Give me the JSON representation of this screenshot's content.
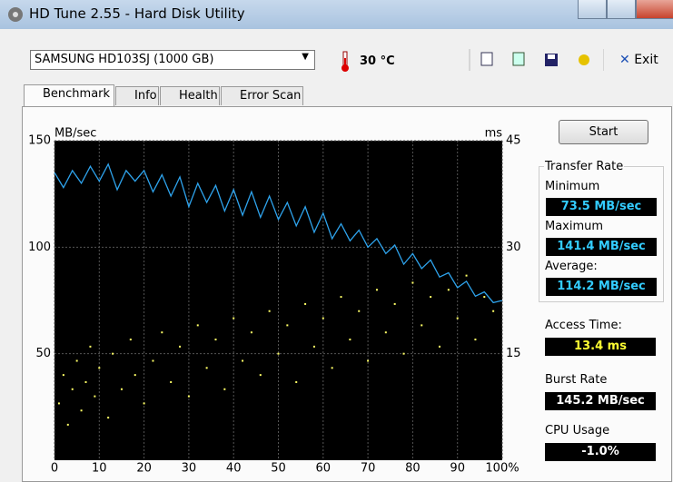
{
  "window": {
    "title": "HD Tune 2.55 - Hard Disk Utility"
  },
  "toolbar": {
    "drive": "SAMSUNG HD103SJ (1000 GB)",
    "temperature": "30 °C",
    "exit": "Exit"
  },
  "tabs": [
    "Benchmark",
    "Info",
    "Health",
    "Error Scan"
  ],
  "results": {
    "start": "Start",
    "transfer_rate": "Transfer Rate",
    "minimum_label": "Minimum",
    "minimum": "73.5 MB/sec",
    "maximum_label": "Maximum",
    "maximum": "141.4 MB/sec",
    "average_label": "Average:",
    "average": "114.2 MB/sec",
    "access_time_label": "Access Time:",
    "access_time": "13.4 ms",
    "burst_rate_label": "Burst Rate",
    "burst_rate": "145.2 MB/sec",
    "cpu_usage_label": "CPU Usage",
    "cpu_usage": "-1.0%"
  },
  "chart_data": {
    "type": "line",
    "y_label": "MB/sec",
    "y2_label": "ms",
    "xlim": [
      0,
      100
    ],
    "xticks": [
      0,
      10,
      20,
      30,
      40,
      50,
      60,
      70,
      80,
      90,
      {
        "value": 100,
        "label": "100%"
      }
    ],
    "ylim": [
      0,
      150
    ],
    "yticks": [
      50,
      100,
      150
    ],
    "y2lim": [
      0,
      45
    ],
    "y2ticks": [
      15,
      30,
      45
    ],
    "grid": true,
    "series": [
      {
        "type": "line",
        "color": "#2ea3ec",
        "x": [
          0,
          2,
          4,
          6,
          8,
          10,
          12,
          14,
          16,
          18,
          20,
          22,
          24,
          26,
          28,
          30,
          32,
          34,
          36,
          38,
          40,
          42,
          44,
          46,
          48,
          50,
          52,
          54,
          56,
          58,
          60,
          62,
          64,
          66,
          68,
          70,
          72,
          74,
          76,
          78,
          80,
          82,
          84,
          86,
          88,
          90,
          92,
          94,
          96,
          98,
          100
        ],
        "values": [
          135,
          128,
          136,
          130,
          138,
          131,
          139,
          127,
          136,
          131,
          136,
          126,
          134,
          124,
          133,
          119,
          130,
          121,
          129,
          117,
          127,
          115,
          126,
          114,
          124,
          113,
          121,
          110,
          119,
          107,
          116,
          104,
          111,
          103,
          108,
          100,
          104,
          97,
          101,
          92,
          97,
          90,
          94,
          86,
          88,
          81,
          84,
          77,
          79,
          74,
          75
        ]
      },
      {
        "type": "scatter",
        "color": "#ffff66",
        "axis": "y2",
        "x": [
          1,
          2,
          3,
          4,
          5,
          6,
          7,
          8,
          9,
          10,
          12,
          13,
          15,
          17,
          18,
          20,
          22,
          24,
          26,
          28,
          30,
          32,
          34,
          36,
          38,
          40,
          42,
          44,
          46,
          48,
          50,
          52,
          54,
          56,
          58,
          60,
          62,
          64,
          66,
          68,
          70,
          72,
          74,
          76,
          78,
          80,
          82,
          84,
          86,
          88,
          90,
          92,
          94,
          96,
          98
        ],
        "values": [
          8,
          12,
          5,
          10,
          14,
          7,
          11,
          16,
          9,
          13,
          6,
          15,
          10,
          17,
          12,
          8,
          14,
          18,
          11,
          16,
          9,
          19,
          13,
          17,
          10,
          20,
          14,
          18,
          12,
          21,
          15,
          19,
          11,
          22,
          16,
          20,
          13,
          23,
          17,
          21,
          14,
          24,
          18,
          22,
          15,
          25,
          19,
          23,
          16,
          24,
          20,
          26,
          17,
          23,
          21
        ]
      }
    ]
  }
}
